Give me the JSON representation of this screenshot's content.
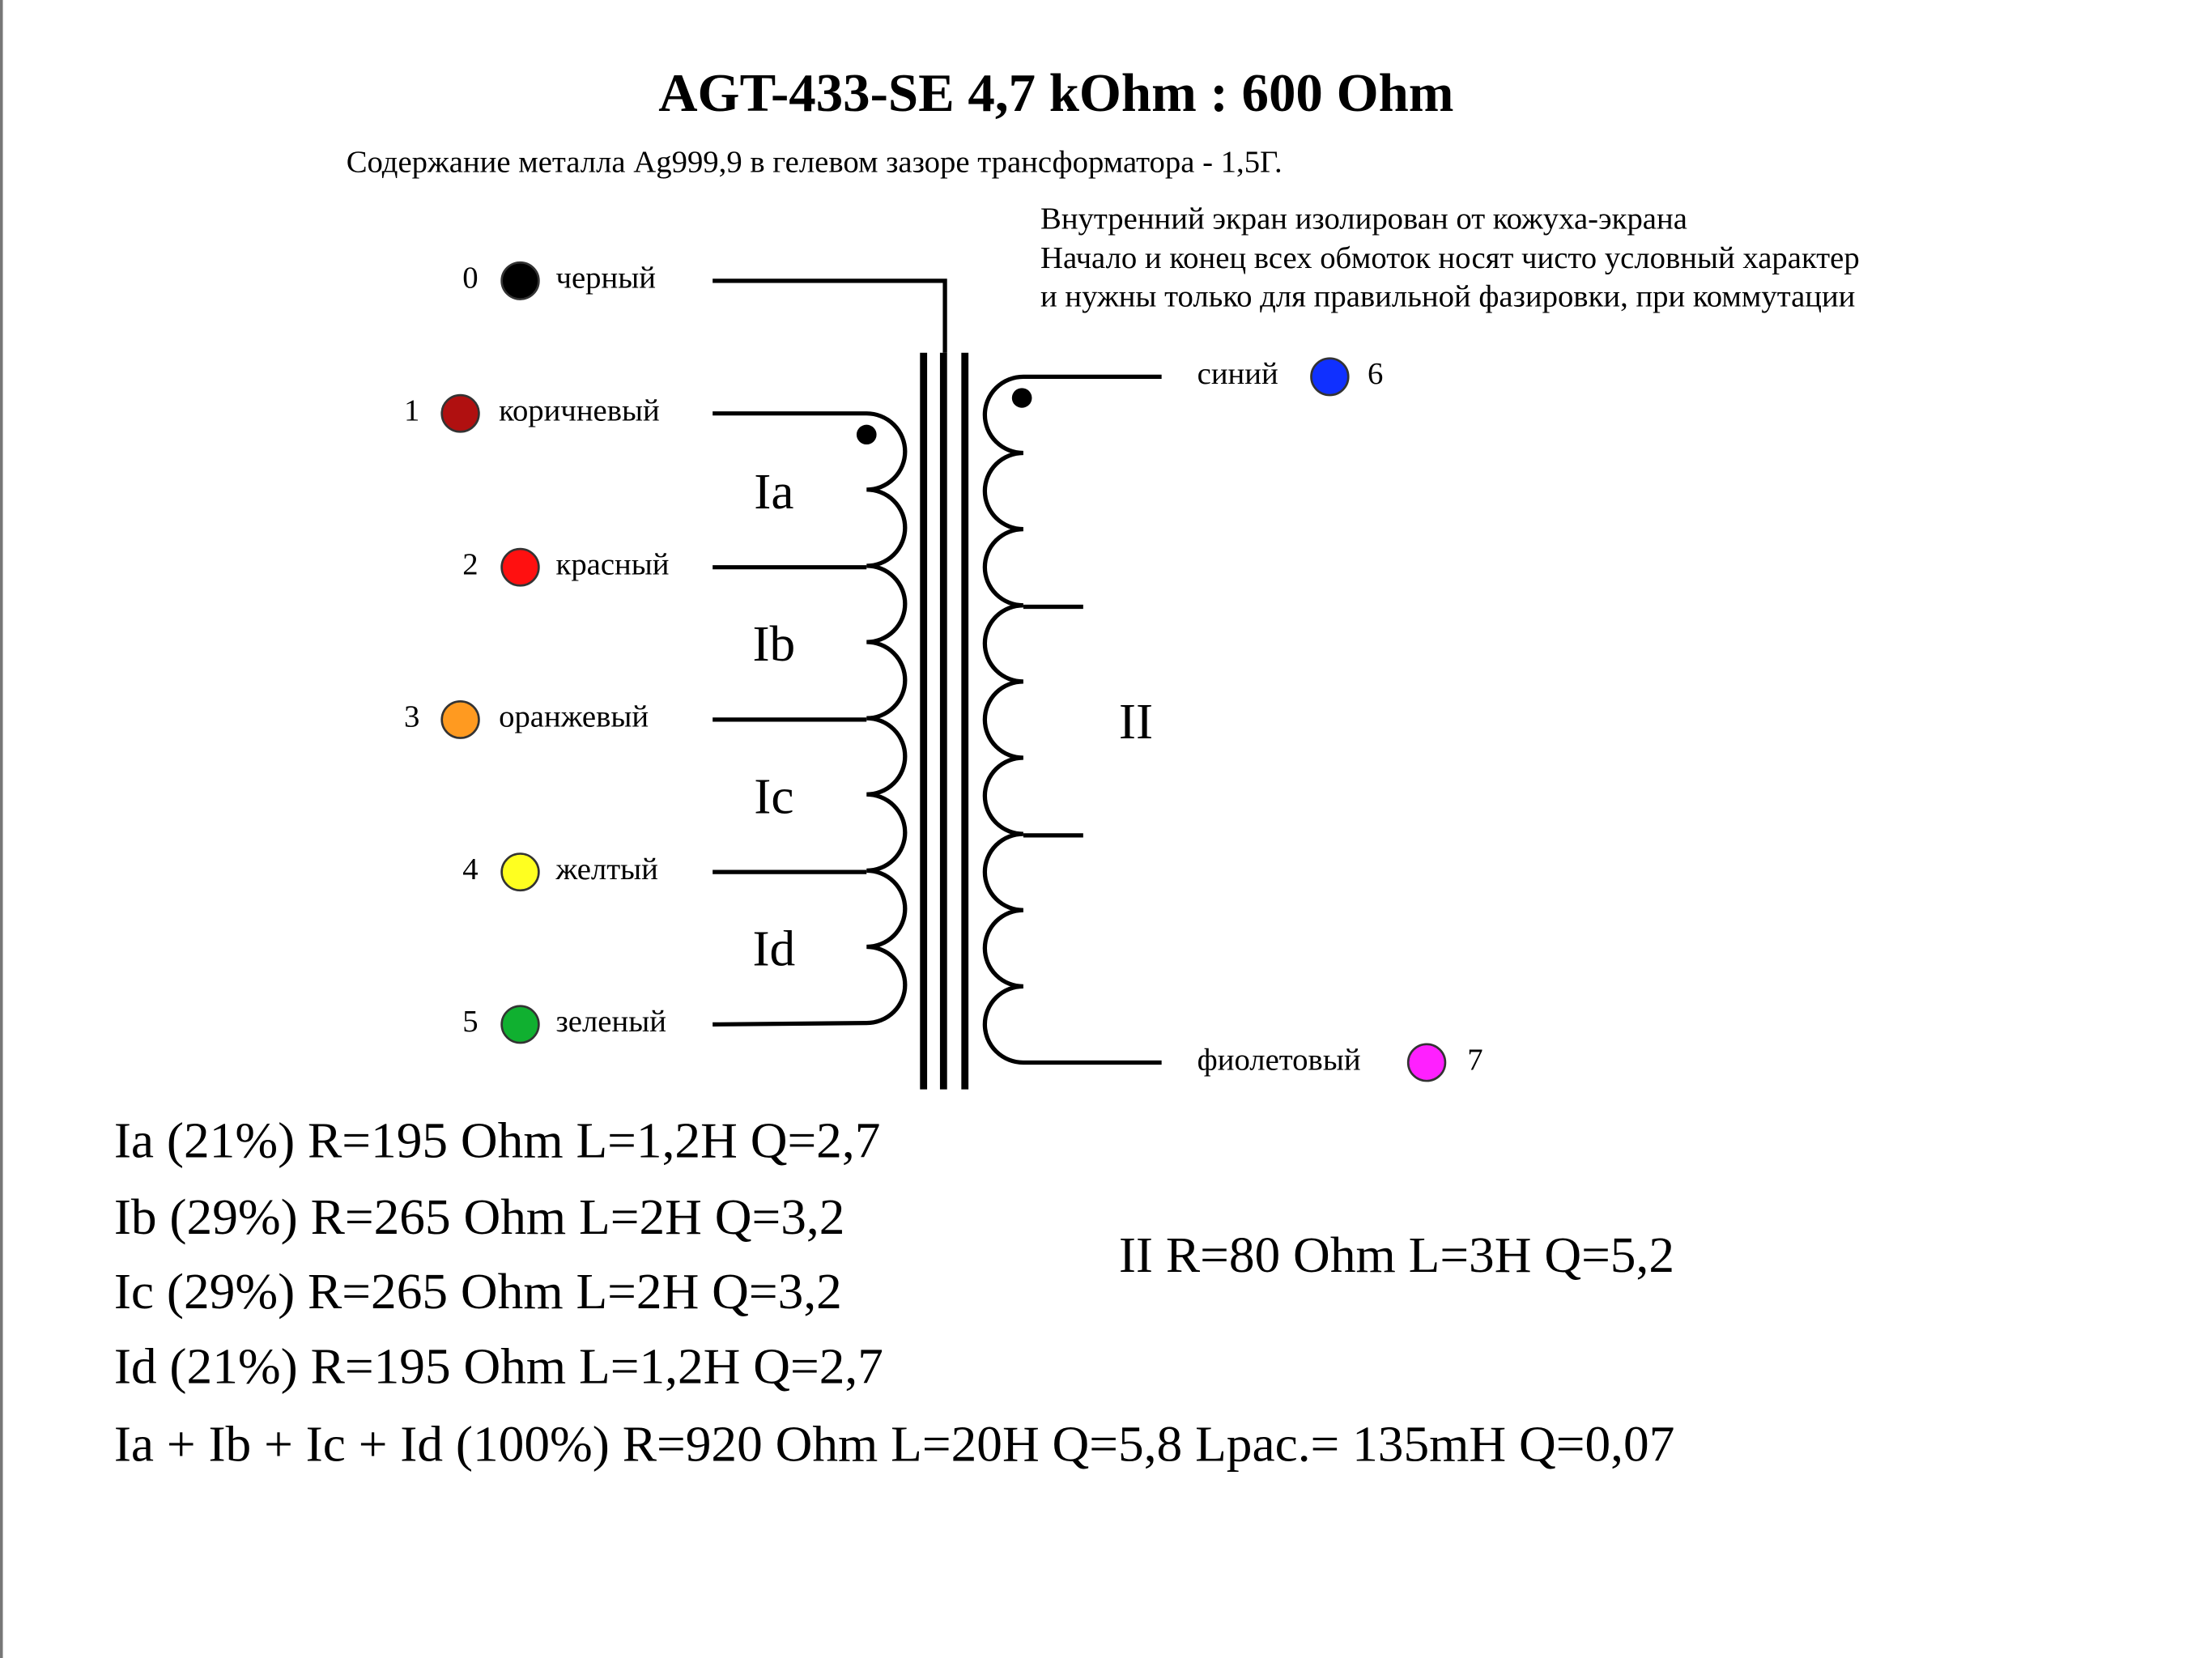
{
  "header": {
    "title": "AGT-433-SE  4,7 kOhm : 600 Ohm",
    "subtitle": "Содержание металла Ag999,9 в гелевом зазоре трансформатора -   1,5Г."
  },
  "notes": [
    "Внутренний экран изолирован от кожуха-экрана",
    "Начало и конец всех обмоток носят чисто условный характер",
    "и нужны только для правильной фазировки, при коммутации"
  ],
  "pins": [
    {
      "number": "0",
      "label": "черный",
      "color": "#000000"
    },
    {
      "number": "1",
      "label": "коричневый",
      "color": "#b01010"
    },
    {
      "number": "2",
      "label": "красный",
      "color": "#ff1010"
    },
    {
      "number": "3",
      "label": "оранжевый",
      "color": "#ff9a20"
    },
    {
      "number": "4",
      "label": "желтый",
      "color": "#ffff20"
    },
    {
      "number": "5",
      "label": "зеленый",
      "color": "#10b030"
    },
    {
      "number": "6",
      "label": "синий",
      "color": "#1030ff"
    },
    {
      "number": "7",
      "label": "фиолетовый",
      "color": "#ff20ff"
    }
  ],
  "windings": [
    "Ia",
    "Ib",
    "Ic",
    "Id",
    "II"
  ],
  "specs": [
    "Ia (21%) R=195 Ohm L=1,2H Q=2,7",
    "Ib (29%) R=265 Ohm L=2H Q=3,2",
    "Ic (29%) R=265 Ohm L=2H Q=3,2",
    "Id (21%) R=195 Ohm L=1,2H Q=2,7",
    "Ia + Ib + Ic + Id (100%) R=920 Ohm L=20H Q=5,8 Lрас.= 135mH Q=0,07"
  ],
  "secondary_spec": "II  R=80 Ohm L=3H Q=5,2"
}
